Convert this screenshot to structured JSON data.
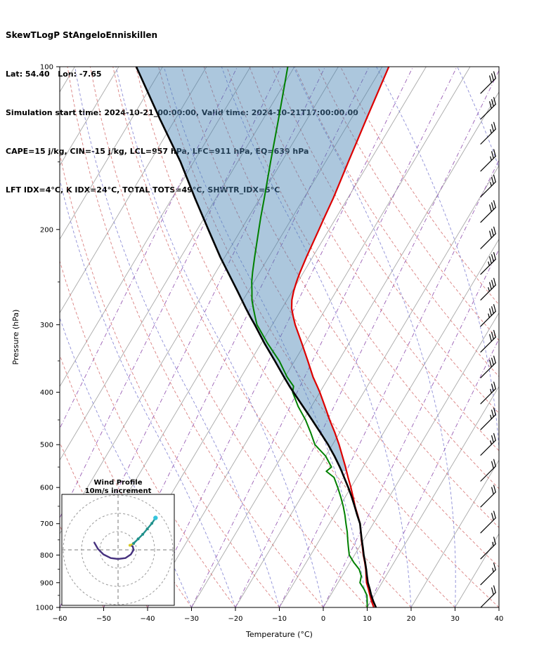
{
  "header": {
    "title": "SkewTLogP StAngeloEnniskillen",
    "location_line": "Lat: 54.40   Lon: -7.65",
    "time_line": "Simulation start time: 2024-10-21_00:00:00, Valid time: 2024-10-21T17:00:00.00",
    "indices_line1": "CAPE=15 j/kg, CIN=-15 j/kg, LCL=957 hPa, LFC=911 hPa, EQ=639 hPa",
    "indices_line2": "LFT IDX=4°C, K IDX=24°C, TOTAL TOTS=49°C, SHWTR_IDX=5°C"
  },
  "chart_data": {
    "type": "skew-t-log-p",
    "title": "SkewTLogP StAngeloEnniskillen",
    "xlabel": "Temperature (°C)",
    "ylabel": "Pressure (hPa)",
    "xlim": [
      -60,
      40
    ],
    "pressure_lim": [
      100,
      1000
    ],
    "axes": {
      "x_tick_values": [
        -60,
        -50,
        -40,
        -30,
        -20,
        -10,
        0,
        10,
        20,
        30,
        40
      ],
      "x_tick_labels": [
        "−60",
        "−50",
        "−40",
        "−30",
        "−20",
        "−10",
        "0",
        "10",
        "20",
        "30",
        "40"
      ],
      "y_tick_values": [
        100,
        200,
        300,
        400,
        500,
        600,
        700,
        800,
        900,
        1000
      ],
      "y_tick_labels": [
        "100",
        "200",
        "300",
        "400",
        "500",
        "600",
        "700",
        "800",
        "900",
        "1000"
      ],
      "y_minor_tick_values": [
        150,
        250,
        350,
        450,
        550,
        650,
        750,
        850,
        950
      ]
    },
    "sounding": {
      "pressure_hpa": [
        1000,
        975,
        950,
        925,
        900,
        875,
        850,
        825,
        800,
        775,
        750,
        725,
        700,
        675,
        650,
        625,
        600,
        575,
        560,
        550,
        525,
        500,
        475,
        450,
        425,
        400,
        390,
        375,
        350,
        325,
        300,
        290,
        280,
        270,
        260,
        250,
        240,
        225,
        200,
        190,
        175,
        150,
        125,
        100
      ],
      "temperature_c": [
        11.5,
        10.2,
        9,
        7.8,
        6.5,
        5.5,
        4.5,
        3.3,
        2,
        0.8,
        -0.5,
        -1.7,
        -3,
        -4.7,
        -6.5,
        -8.2,
        -10,
        -12,
        -13.2,
        -14,
        -16.2,
        -18.5,
        -21.1,
        -24,
        -26.9,
        -30,
        -31.4,
        -33.6,
        -37,
        -40.7,
        -44.8,
        -46.3,
        -47.8,
        -48.9,
        -49.7,
        -50.3,
        -50.8,
        -51.4,
        -52.3,
        -52.7,
        -53.3,
        -54.8,
        -56.5,
        -58.5
      ],
      "dewpoint_c": [
        10,
        9.2,
        8.3,
        6.8,
        5,
        4.4,
        3,
        0.8,
        -1.2,
        -2.4,
        -3.6,
        -4.8,
        -6.2,
        -7.6,
        -9.2,
        -11,
        -13,
        -15.2,
        -17.8,
        -17.2,
        -20,
        -24,
        -26.6,
        -29.5,
        -33,
        -36.2,
        -36.8,
        -39.5,
        -43.5,
        -48.5,
        -53.5,
        -55,
        -56.5,
        -58,
        -59.2,
        -60.5,
        -61.6,
        -63.2,
        -66,
        -67.2,
        -69,
        -72.5,
        -76.5,
        -81.5
      ],
      "parcel_c": [
        12,
        10.6,
        9.3,
        8.1,
        6.8,
        5.7,
        4.6,
        3.4,
        2.1,
        0.9,
        -0.4,
        -1.7,
        -3,
        -4.8,
        -6.6,
        -8.5,
        -10.6,
        -12.9,
        -14.3,
        -15.3,
        -18,
        -21,
        -24.4,
        -28,
        -31.9,
        -36,
        -37.7,
        -40.2,
        -44.5,
        -49.2,
        -54,
        -56.1,
        -58.2,
        -60.3,
        -62.5,
        -64.8,
        -67.2,
        -71,
        -77.5,
        -80.3,
        -84.8,
        -93,
        -103.5,
        -116
      ]
    },
    "derived_indices": {
      "cape_j_kg": 15,
      "cin_j_kg": -15,
      "lcl_hpa": 957,
      "lfc_hpa": 911,
      "eq_hpa": 639,
      "lft_idx_c": 4,
      "k_idx_c": 24,
      "total_tots_c": 49,
      "shwtr_idx_c": 5
    },
    "shading": {
      "between": [
        "parcel_c",
        "temperature_c"
      ],
      "from_pressure": 560,
      "to_pressure": 100,
      "color": "#4682B4",
      "opacity": 0.45
    },
    "background": {
      "isotherms": {
        "start": -130,
        "end": 40,
        "step": 10
      },
      "dry_adiabats": {
        "start": -60,
        "end": 120,
        "step": 10
      },
      "moist_adiabats": {
        "start": -30,
        "end": 80,
        "step": 10
      },
      "mixing_lines": {
        "start": -80,
        "end": 10,
        "step": 10
      }
    },
    "colors": {
      "temperature": "#dd0000",
      "dewpoint": "#008000",
      "parcel": "#000000",
      "isotherm": "#a8a8a8",
      "dry_adiabat": "#d46a6a",
      "moist_adiabat": "#7a7ad0",
      "mixing_line": "#9a5fb5",
      "wind_barb": "#000000"
    },
    "wind_barbs": [
      {
        "p": 112,
        "kt": 30
      },
      {
        "p": 125,
        "kt": 30
      },
      {
        "p": 139,
        "kt": 25
      },
      {
        "p": 156,
        "kt": 25
      },
      {
        "p": 174,
        "kt": 25
      },
      {
        "p": 194,
        "kt": 30
      },
      {
        "p": 217,
        "kt": 30
      },
      {
        "p": 242,
        "kt": 35
      },
      {
        "p": 270,
        "kt": 35
      },
      {
        "p": 302,
        "kt": 35
      },
      {
        "p": 337,
        "kt": 30
      },
      {
        "p": 376,
        "kt": 30
      },
      {
        "p": 420,
        "kt": 25
      },
      {
        "p": 469,
        "kt": 25
      },
      {
        "p": 523,
        "kt": 25
      },
      {
        "p": 584,
        "kt": 20
      },
      {
        "p": 652,
        "kt": 20
      },
      {
        "p": 728,
        "kt": 20
      },
      {
        "p": 813,
        "kt": 15
      },
      {
        "p": 908,
        "kt": 15
      },
      {
        "p": 1000,
        "kt": 20
      }
    ],
    "hodograph": {
      "title_line1": "Wind Profile",
      "title_line2": "10m/s increment",
      "ring_increment_ms": 10,
      "rings_ms": [
        10,
        20,
        30
      ],
      "trace": [
        {
          "name": "low-level",
          "color": "#46317e",
          "markers": false,
          "points": [
            [
              -13,
              4
            ],
            [
              -11,
              0.5
            ],
            [
              -8,
              -2.5
            ],
            [
              -4,
              -4.5
            ],
            [
              0,
              -5
            ],
            [
              4,
              -4.5
            ],
            [
              7,
              -2.5
            ],
            [
              8.5,
              0
            ],
            [
              8,
              2
            ],
            [
              6.5,
              2.5
            ]
          ]
        },
        {
          "name": "mid-level",
          "color": "#d8c926",
          "markers": true,
          "points": [
            [
              6.5,
              2.5
            ],
            [
              8.5,
              3.5
            ]
          ]
        },
        {
          "name": "upper-level",
          "color": "#21918c",
          "markers": true,
          "points": [
            [
              8.5,
              3.5
            ],
            [
              11,
              6
            ],
            [
              13.5,
              8.5
            ],
            [
              16,
              11.5
            ],
            [
              18.5,
              14.5
            ],
            [
              20.5,
              17.5
            ]
          ]
        }
      ],
      "end_marker_color": "#35c4dc"
    }
  }
}
